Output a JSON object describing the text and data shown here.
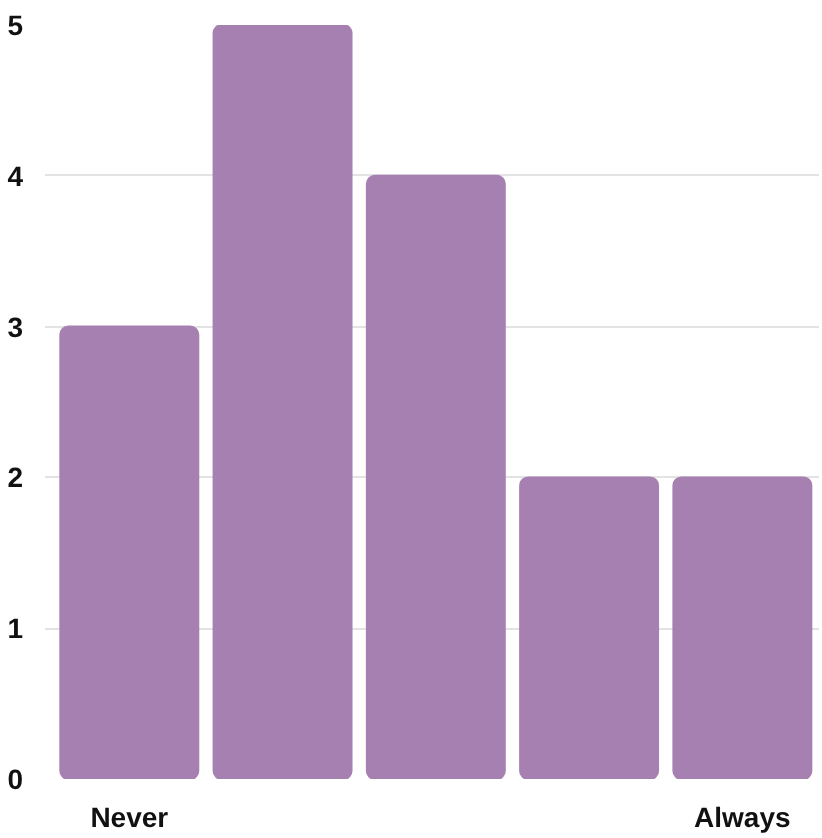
{
  "chart_data": {
    "type": "bar",
    "categories": [
      "Never",
      null,
      null,
      null,
      "Always"
    ],
    "values": [
      3,
      5,
      4,
      2,
      2
    ],
    "color": "#a680b0",
    "ylim": [
      0,
      5
    ],
    "yticks": [
      0,
      1,
      2,
      3,
      4,
      5
    ],
    "grid": "y"
  }
}
